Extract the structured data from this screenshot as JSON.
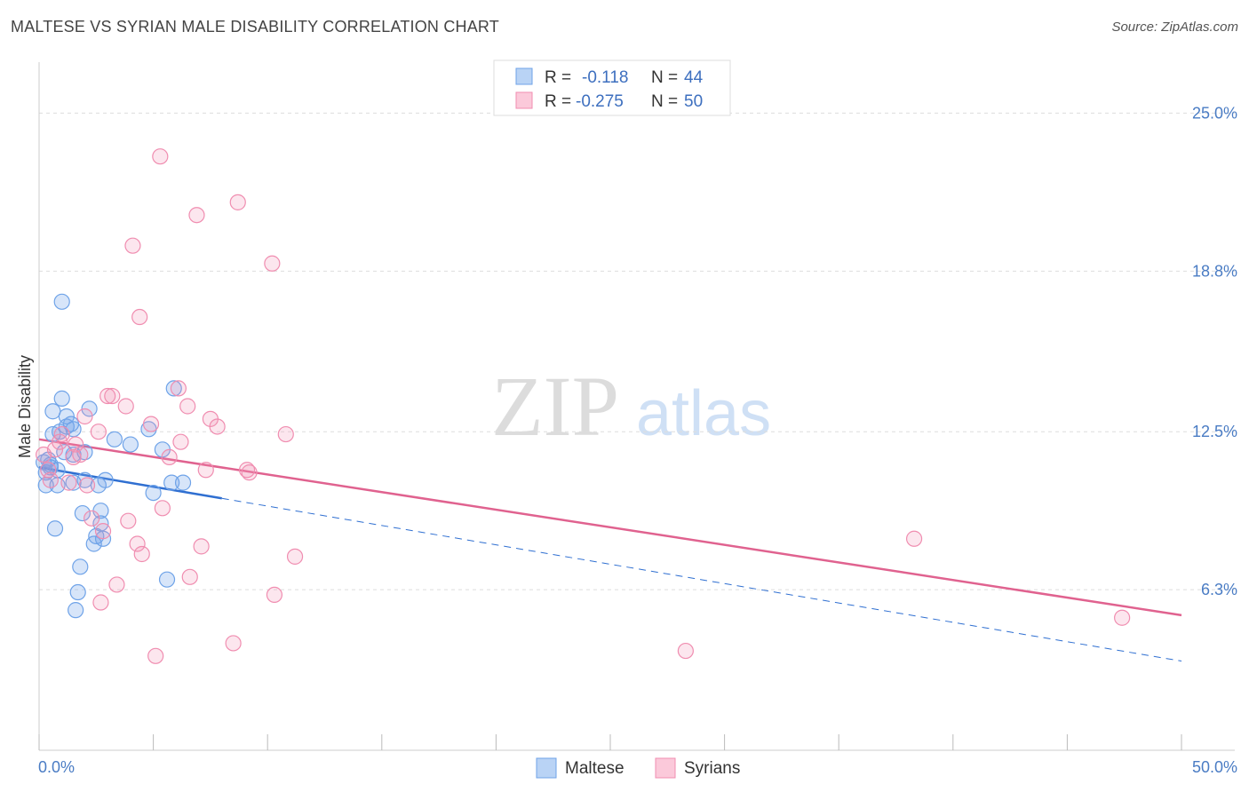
{
  "header": {
    "title": "MALTESE VS SYRIAN MALE DISABILITY CORRELATION CHART",
    "source": "Source: ZipAtlas.com"
  },
  "watermark": {
    "zip": "ZIP",
    "atlas": "atlas"
  },
  "chart_data": {
    "type": "scatter",
    "title": "MALTESE VS SYRIAN MALE DISABILITY CORRELATION CHART",
    "ylabel": "Male Disability",
    "xlabel": "",
    "xlim": [
      0,
      50
    ],
    "ylim": [
      0,
      27
    ],
    "x_tick_labels": {
      "min": "0.0%",
      "max": "50.0%"
    },
    "y_ticks": [
      {
        "value": 6.3,
        "label": "6.3%"
      },
      {
        "value": 12.5,
        "label": "12.5%"
      },
      {
        "value": 18.8,
        "label": "18.8%"
      },
      {
        "value": 25.0,
        "label": "25.0%"
      }
    ],
    "legend": {
      "stats": [
        {
          "r_label": "R =",
          "r_value": "-0.118",
          "n_label": "N =",
          "n_value": "44"
        },
        {
          "r_label": "R =",
          "r_value": "-0.275",
          "n_label": "N =",
          "n_value": "50"
        }
      ],
      "position": "top-center"
    },
    "series": [
      {
        "name": "Maltese",
        "color": "#6fa3e8",
        "line_color": "#2f6fd1",
        "trend": {
          "x_start": 0,
          "y_start": 11.1,
          "x_solid_end": 8,
          "x_end": 50,
          "y_end": 3.5
        },
        "points": [
          [
            0.3,
            10.9
          ],
          [
            0.3,
            10.4
          ],
          [
            0.4,
            11.4
          ],
          [
            0.5,
            11.2
          ],
          [
            0.5,
            11.1
          ],
          [
            0.6,
            12.4
          ],
          [
            0.6,
            13.3
          ],
          [
            0.7,
            8.7
          ],
          [
            0.8,
            10.4
          ],
          [
            0.9,
            12.5
          ],
          [
            1.0,
            17.6
          ],
          [
            1.0,
            13.8
          ],
          [
            1.1,
            11.7
          ],
          [
            1.2,
            13.1
          ],
          [
            1.2,
            12.7
          ],
          [
            1.4,
            12.8
          ],
          [
            1.5,
            12.6
          ],
          [
            1.5,
            10.5
          ],
          [
            1.5,
            11.6
          ],
          [
            1.6,
            5.5
          ],
          [
            1.7,
            6.2
          ],
          [
            1.8,
            7.2
          ],
          [
            1.9,
            9.3
          ],
          [
            2.0,
            11.7
          ],
          [
            2.0,
            10.6
          ],
          [
            2.2,
            13.4
          ],
          [
            2.4,
            8.1
          ],
          [
            2.5,
            8.4
          ],
          [
            2.6,
            10.4
          ],
          [
            2.7,
            9.4
          ],
          [
            2.7,
            8.9
          ],
          [
            2.8,
            8.3
          ],
          [
            2.9,
            10.6
          ],
          [
            3.3,
            12.2
          ],
          [
            4.0,
            12.0
          ],
          [
            4.8,
            12.6
          ],
          [
            5.0,
            10.1
          ],
          [
            5.4,
            11.8
          ],
          [
            5.6,
            6.7
          ],
          [
            5.8,
            10.5
          ],
          [
            5.9,
            14.2
          ],
          [
            6.3,
            10.5
          ],
          [
            0.2,
            11.3
          ],
          [
            0.8,
            11.0
          ]
        ]
      },
      {
        "name": "Syrians",
        "color": "#f08db0",
        "line_color": "#e0628f",
        "trend": {
          "x_start": 0,
          "y_start": 12.2,
          "x_end": 50,
          "y_end": 5.3
        },
        "points": [
          [
            0.2,
            11.6
          ],
          [
            0.4,
            11.0
          ],
          [
            0.5,
            10.6
          ],
          [
            0.7,
            11.8
          ],
          [
            0.9,
            12.1
          ],
          [
            1.0,
            12.4
          ],
          [
            1.3,
            10.5
          ],
          [
            1.5,
            11.5
          ],
          [
            1.6,
            12.0
          ],
          [
            1.8,
            11.6
          ],
          [
            2.0,
            13.1
          ],
          [
            2.1,
            10.4
          ],
          [
            2.3,
            9.1
          ],
          [
            2.6,
            12.5
          ],
          [
            2.7,
            5.8
          ],
          [
            2.8,
            8.6
          ],
          [
            3.0,
            13.9
          ],
          [
            3.2,
            13.9
          ],
          [
            3.4,
            6.5
          ],
          [
            3.8,
            13.5
          ],
          [
            3.9,
            9.0
          ],
          [
            4.1,
            19.8
          ],
          [
            4.3,
            8.1
          ],
          [
            4.4,
            17.0
          ],
          [
            4.5,
            7.7
          ],
          [
            4.9,
            12.8
          ],
          [
            5.1,
            3.7
          ],
          [
            5.3,
            23.3
          ],
          [
            5.4,
            9.5
          ],
          [
            5.7,
            11.5
          ],
          [
            6.1,
            14.2
          ],
          [
            6.2,
            12.1
          ],
          [
            6.5,
            13.5
          ],
          [
            6.6,
            6.8
          ],
          [
            6.9,
            21.0
          ],
          [
            7.1,
            8.0
          ],
          [
            7.3,
            11.0
          ],
          [
            7.5,
            13.0
          ],
          [
            7.8,
            12.7
          ],
          [
            8.5,
            4.2
          ],
          [
            8.7,
            21.5
          ],
          [
            9.1,
            11.0
          ],
          [
            9.2,
            10.9
          ],
          [
            10.2,
            19.1
          ],
          [
            10.3,
            6.1
          ],
          [
            10.8,
            12.4
          ],
          [
            11.2,
            7.6
          ],
          [
            28.3,
            3.9
          ],
          [
            38.3,
            8.3
          ],
          [
            47.4,
            5.2
          ]
        ]
      }
    ]
  }
}
